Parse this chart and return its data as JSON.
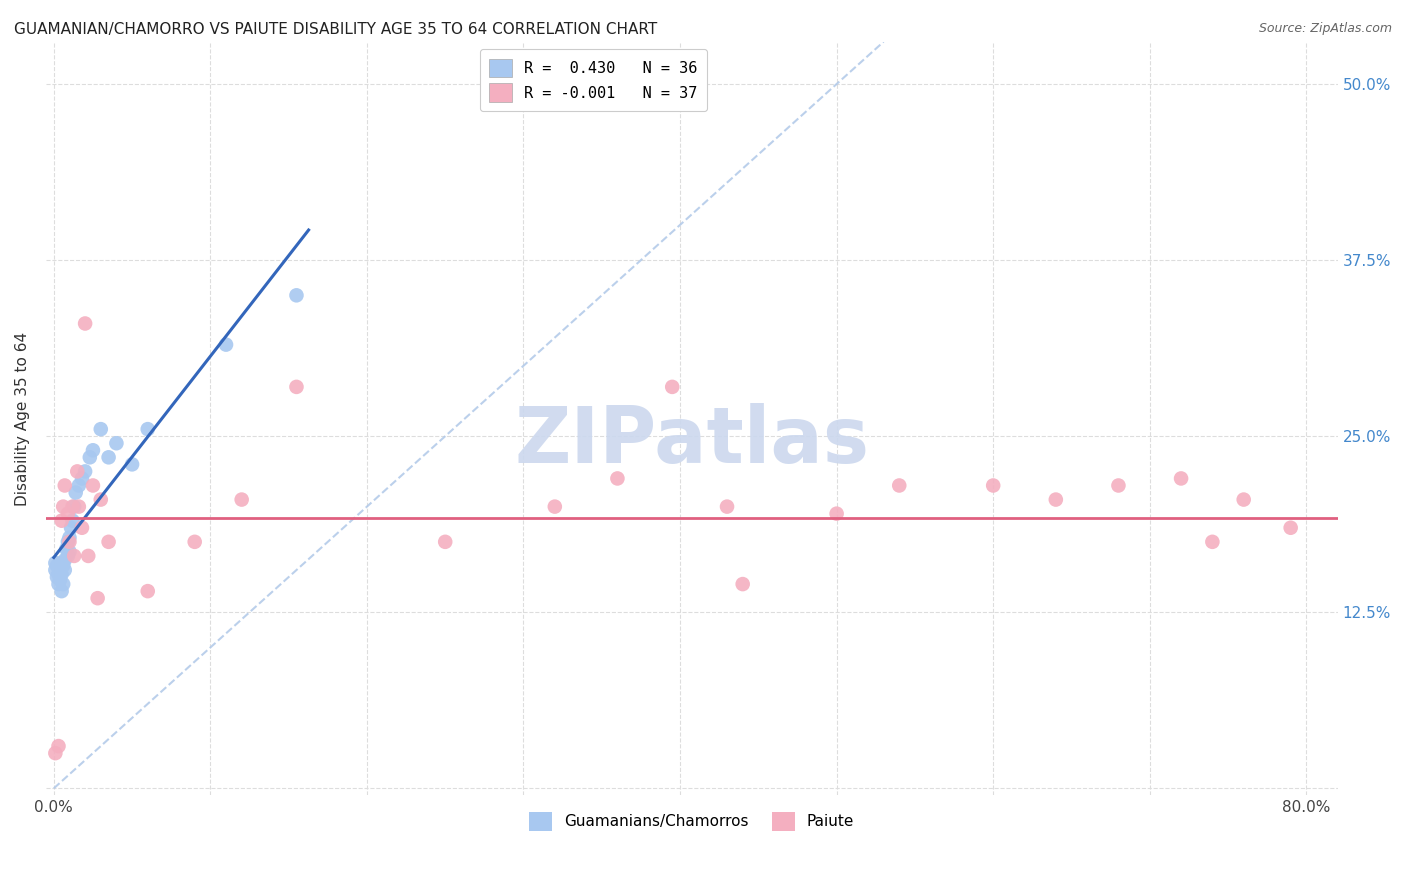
{
  "title": "GUAMANIAN/CHAMORRO VS PAIUTE DISABILITY AGE 35 TO 64 CORRELATION CHART",
  "source": "Source: ZipAtlas.com",
  "ylabel": "Disability Age 35 to 64",
  "ylim": [
    -0.005,
    0.53
  ],
  "xlim": [
    -0.005,
    0.82
  ],
  "yticks": [
    0.0,
    0.125,
    0.25,
    0.375,
    0.5
  ],
  "ytick_labels": [
    "",
    "12.5%",
    "25.0%",
    "37.5%",
    "50.0%"
  ],
  "xtick_positions": [
    0.0,
    0.1,
    0.2,
    0.3,
    0.4,
    0.5,
    0.6,
    0.7,
    0.8
  ],
  "xtick_labels": [
    "0.0%",
    "",
    "",
    "",
    "",
    "",
    "",
    "",
    "80.0%"
  ],
  "legend_blue_label": "R =  0.430   N = 36",
  "legend_pink_label": "R = -0.001   N = 37",
  "legend_series1": "Guamanians/Chamorros",
  "legend_series2": "Paiute",
  "blue_color": "#a8c8f0",
  "pink_color": "#f4afc0",
  "trendline_blue_color": "#3366bb",
  "trendline_pink_color": "#e06080",
  "diag_color": "#b0c8e8",
  "grid_color": "#dddddd",
  "background_color": "#ffffff",
  "watermark_text": "ZIPatlas",
  "watermark_color": "#ccd8ee",
  "watermark_alpha": 0.9,
  "guamanian_x": [
    0.001,
    0.001,
    0.002,
    0.002,
    0.003,
    0.003,
    0.004,
    0.004,
    0.005,
    0.005,
    0.005,
    0.006,
    0.006,
    0.007,
    0.007,
    0.008,
    0.009,
    0.009,
    0.01,
    0.01,
    0.011,
    0.012,
    0.013,
    0.014,
    0.016,
    0.018,
    0.02,
    0.023,
    0.025,
    0.03,
    0.035,
    0.04,
    0.05,
    0.06,
    0.11,
    0.155
  ],
  "guamanian_y": [
    0.155,
    0.16,
    0.15,
    0.158,
    0.145,
    0.152,
    0.148,
    0.155,
    0.14,
    0.152,
    0.16,
    0.145,
    0.158,
    0.155,
    0.162,
    0.17,
    0.165,
    0.175,
    0.168,
    0.178,
    0.185,
    0.19,
    0.2,
    0.21,
    0.215,
    0.22,
    0.225,
    0.235,
    0.24,
    0.255,
    0.235,
    0.245,
    0.23,
    0.255,
    0.315,
    0.35
  ],
  "paiute_x": [
    0.001,
    0.003,
    0.005,
    0.006,
    0.007,
    0.009,
    0.01,
    0.012,
    0.013,
    0.015,
    0.016,
    0.018,
    0.02,
    0.022,
    0.025,
    0.028,
    0.03,
    0.035,
    0.06,
    0.09,
    0.12,
    0.155,
    0.25,
    0.32,
    0.36,
    0.395,
    0.43,
    0.44,
    0.5,
    0.54,
    0.6,
    0.64,
    0.68,
    0.72,
    0.74,
    0.76,
    0.79
  ],
  "paiute_y": [
    0.025,
    0.03,
    0.19,
    0.2,
    0.215,
    0.195,
    0.175,
    0.2,
    0.165,
    0.225,
    0.2,
    0.185,
    0.33,
    0.165,
    0.215,
    0.135,
    0.205,
    0.175,
    0.14,
    0.175,
    0.205,
    0.285,
    0.175,
    0.2,
    0.22,
    0.285,
    0.2,
    0.145,
    0.195,
    0.215,
    0.215,
    0.205,
    0.215,
    0.22,
    0.175,
    0.205,
    0.185
  ]
}
